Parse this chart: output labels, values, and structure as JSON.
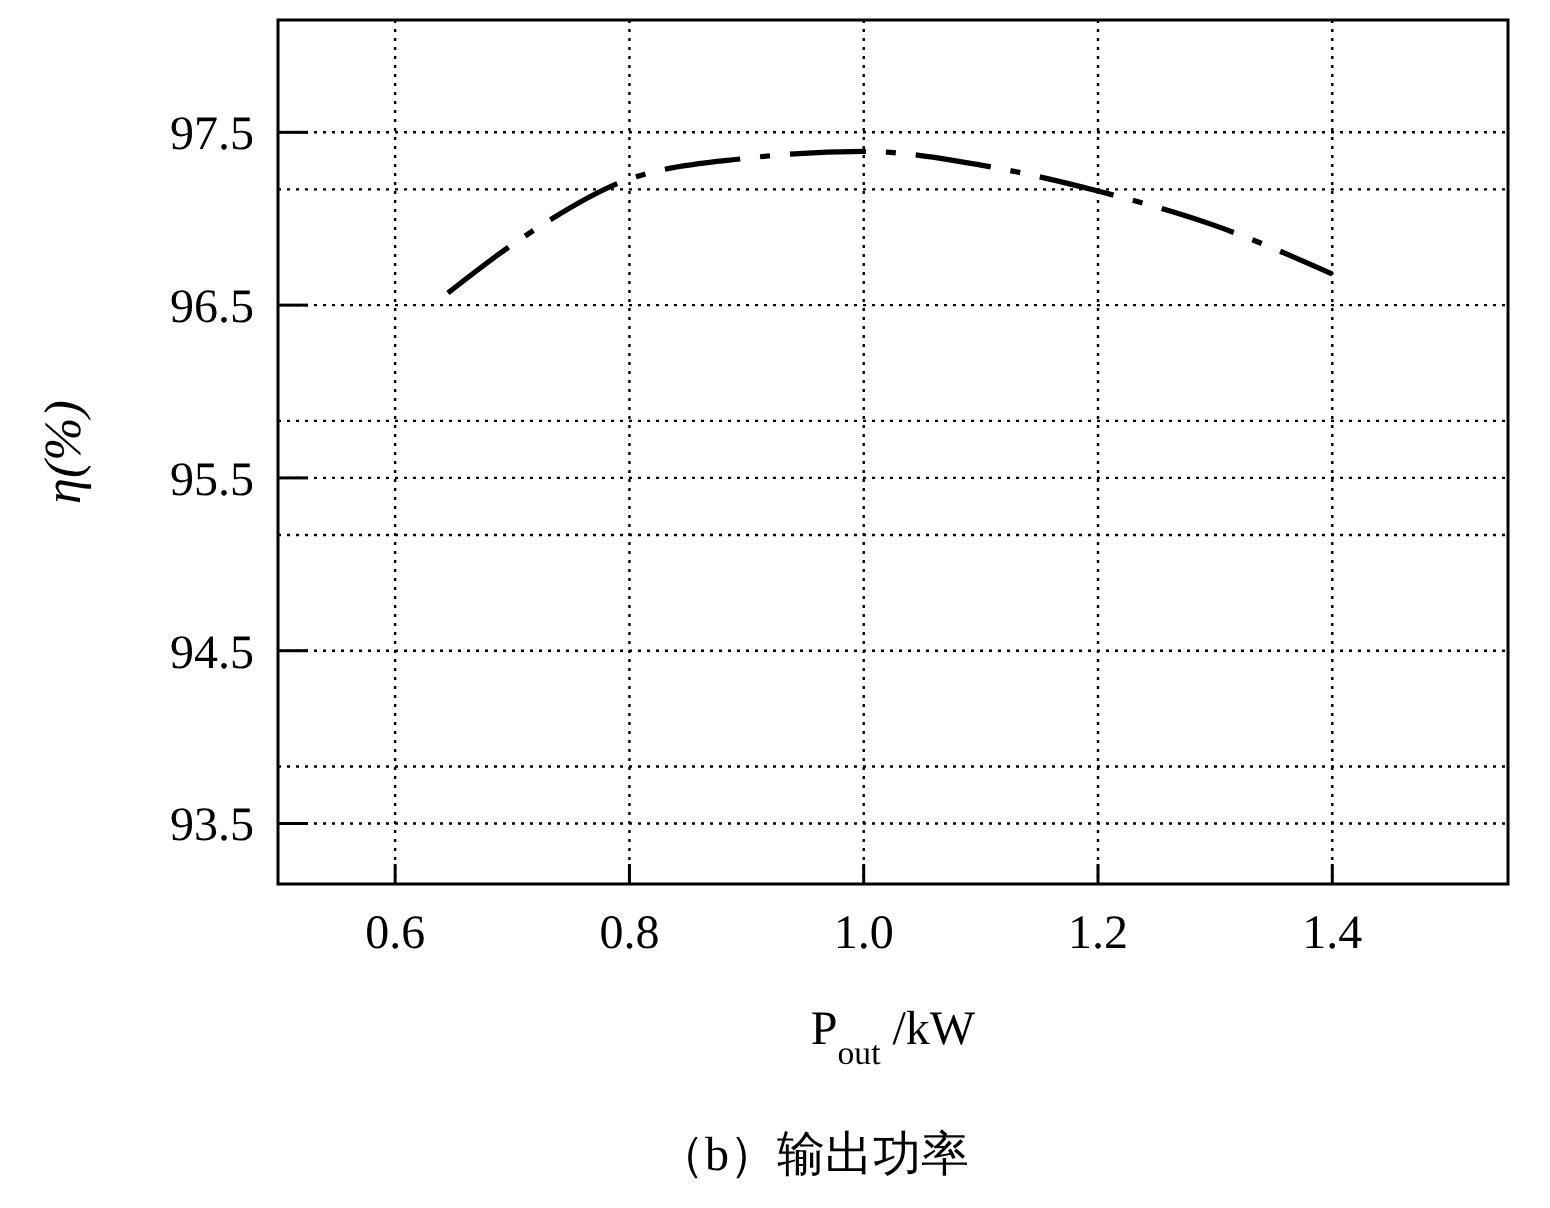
{
  "chart_data": {
    "type": "line",
    "xlabel": "P$_{out}$ /kW",
    "ylabel": "η(%)",
    "annotations": [
      "（b）输出功率"
    ],
    "x": [
      0.645,
      0.7,
      0.72,
      0.8,
      0.9,
      1.0,
      1.1,
      1.2,
      1.3,
      1.4
    ],
    "series": [
      {
        "color": "#000000",
        "values": [
          96.57,
          96.85,
          96.94,
          97.23,
          97.35,
          97.39,
          97.31,
          97.16,
          96.96,
          96.68
        ]
      }
    ],
    "xlim": [
      0.5,
      1.55
    ],
    "xticks": [
      0.6,
      0.8,
      {
        "value": 1,
        "label": "1.0"
      },
      1.2,
      1.4
    ],
    "ylim": [
      93.15,
      98.15
    ],
    "yticks": [
      93.5,
      {
        "value": 93.83,
        "label": null
      },
      94.5,
      {
        "value": 95.17,
        "label": null
      },
      95.5,
      {
        "value": 95.83,
        "label": null
      },
      96.5,
      {
        "value": 97.17,
        "label": null
      },
      97.5
    ],
    "grid": true,
    "line_style": "dashed",
    "marker": "none"
  }
}
